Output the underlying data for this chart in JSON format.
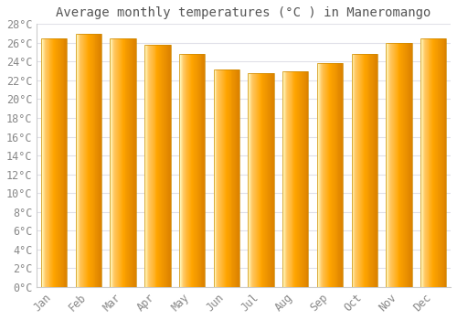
{
  "title": "Average monthly temperatures (°C ) in Maneromango",
  "months": [
    "Jan",
    "Feb",
    "Mar",
    "Apr",
    "May",
    "Jun",
    "Jul",
    "Aug",
    "Sep",
    "Oct",
    "Nov",
    "Dec"
  ],
  "values": [
    26.5,
    27.0,
    26.5,
    25.8,
    24.8,
    23.2,
    22.8,
    23.0,
    23.8,
    24.8,
    26.0,
    26.5
  ],
  "bar_color_main": "#FFA500",
  "bar_color_right": "#E08000",
  "bar_color_left_highlight": "#FFE088",
  "bar_edge_color": "#CC8800",
  "background_color": "#ffffff",
  "grid_color": "#e0e0e8",
  "tick_color": "#888888",
  "title_color": "#555555",
  "ylim": [
    0,
    28
  ],
  "ytick_step": 2,
  "title_fontsize": 10,
  "tick_fontsize": 8.5,
  "font_family": "monospace",
  "bar_width": 0.75
}
